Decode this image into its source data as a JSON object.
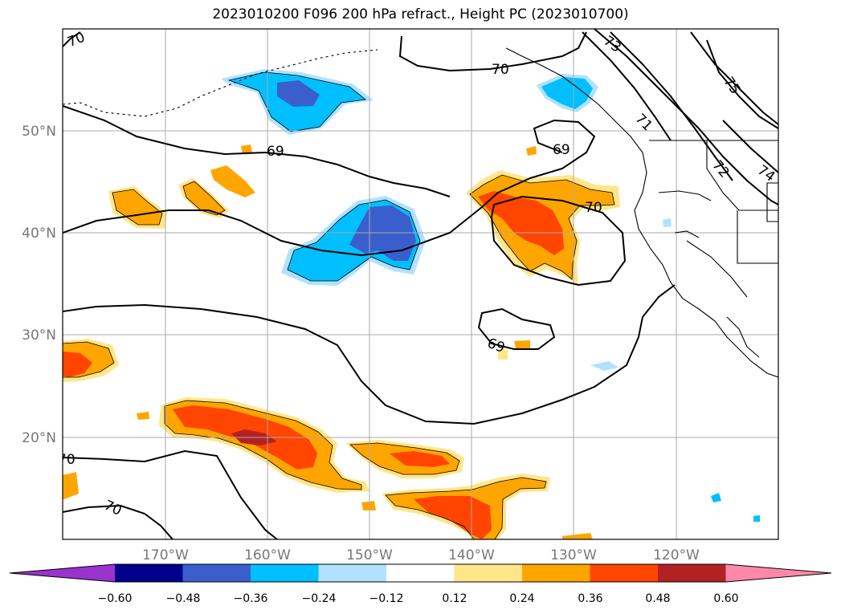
{
  "title": "2023010200 F096 200 hPa refract., Height PC (2023010700)",
  "lon_labels": [
    "170°W",
    "160°W",
    "150°W",
    "140°W",
    "130°W",
    "120°W"
  ],
  "lat_labels": [
    "50°N",
    "40°N",
    "30°N",
    "20°N"
  ],
  "contour_labels": [
    "70",
    "70",
    "73",
    "75",
    "71",
    "72",
    "74",
    "69",
    "69",
    "70",
    "69",
    "70",
    "70"
  ],
  "colorbar": {
    "ticks": [
      "−0.60",
      "−0.48",
      "−0.36",
      "−0.24",
      "−0.12",
      "0.12",
      "0.24",
      "0.36",
      "0.48",
      "0.60"
    ],
    "colors": [
      "#9933cc",
      "#00008b",
      "#3a5fcd",
      "#00bfff",
      "#b0e2ff",
      "#ffffff",
      "#ffe68a",
      "#ffa500",
      "#ff4500",
      "#b22222",
      "#ff88aa"
    ]
  },
  "colors": {
    "grid": "#aaaaaa",
    "axis_label": "#777777",
    "contour": "#000000"
  }
}
